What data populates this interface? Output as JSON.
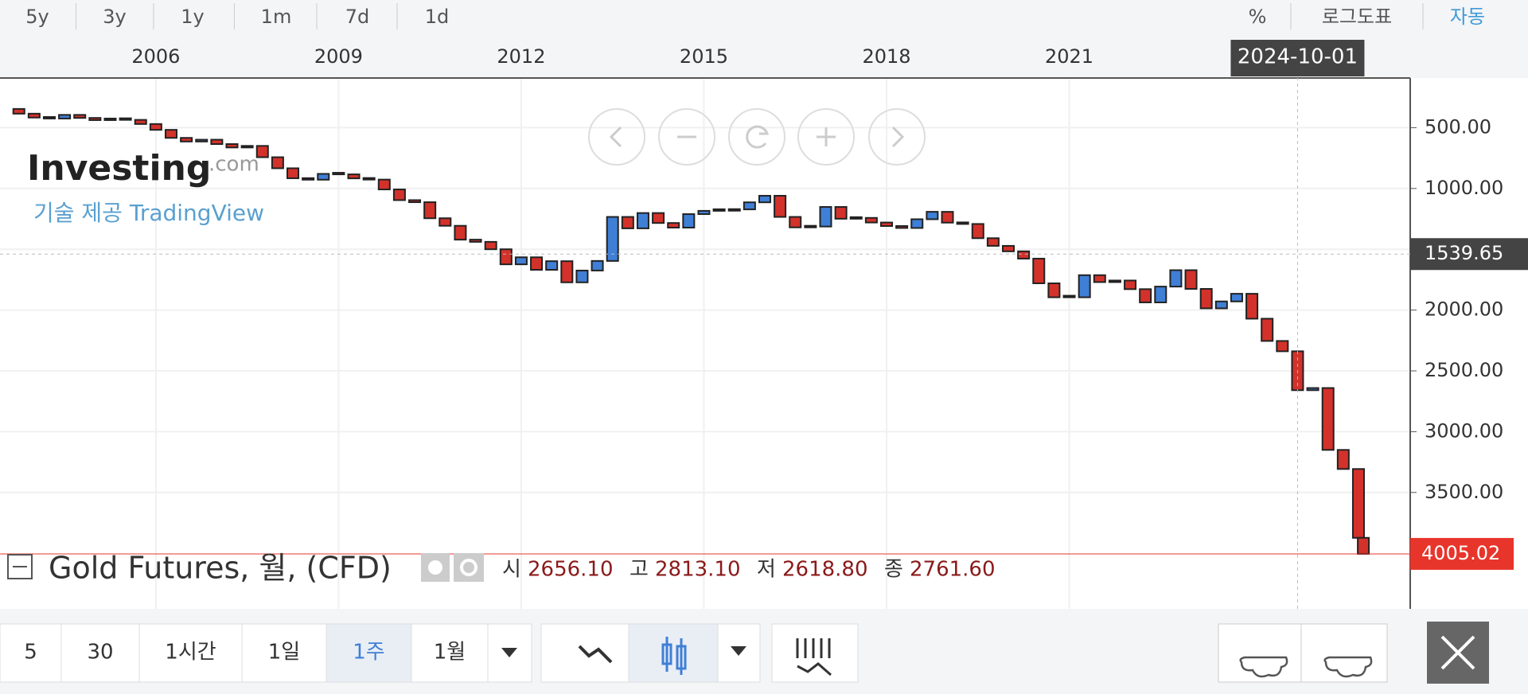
{
  "toolbar": {
    "intervals": [
      "5",
      "30",
      "1시간",
      "1일",
      "1주",
      "1월"
    ],
    "selected": 4
  },
  "range_bar": {
    "ranges": [
      "5y",
      "3y",
      "1y",
      "1m",
      "7d",
      "1d"
    ],
    "percent": "%",
    "log": "로그도표",
    "auto": "자동"
  },
  "watermark": {
    "brand": "Investing",
    "brand_suffix": ".com",
    "credit": "기술 제공 TradingView"
  },
  "chart_data": {
    "type": "candlestick",
    "title": "Gold Futures, 월, (CFD)",
    "ohlc": [
      {
        "name": "시",
        "value": "2656.10"
      },
      {
        "name": "고",
        "value": "2813.10"
      },
      {
        "name": "저",
        "value": "2618.80"
      },
      {
        "name": "종",
        "value": "2761.60"
      }
    ],
    "up_color": "#d3322b",
    "down_color": "#3f7fd6",
    "x": [
      2003.5,
      2003.75,
      2004,
      2004.25,
      2004.5,
      2004.75,
      2005,
      2005.25,
      2005.5,
      2005.75,
      2006,
      2006.25,
      2006.5,
      2006.75,
      2007,
      2007.25,
      2007.5,
      2007.75,
      2008,
      2008.25,
      2008.5,
      2008.75,
      2009,
      2009.25,
      2009.5,
      2009.75,
      2010,
      2010.25,
      2010.5,
      2010.75,
      2011,
      2011.25,
      2011.5,
      2011.75,
      2012,
      2012.25,
      2012.5,
      2012.75,
      2013,
      2013.25,
      2013.5,
      2013.75,
      2014,
      2014.25,
      2014.5,
      2014.75,
      2015,
      2015.25,
      2015.5,
      2015.75,
      2016,
      2016.25,
      2016.5,
      2016.75,
      2017,
      2017.25,
      2017.5,
      2017.75,
      2018,
      2018.25,
      2018.5,
      2018.75,
      2019,
      2019.25,
      2019.5,
      2019.75,
      2020,
      2020.25,
      2020.5,
      2020.75,
      2021,
      2021.25,
      2021.5,
      2021.75,
      2022,
      2022.25,
      2022.5,
      2022.75,
      2023,
      2023.25,
      2023.5,
      2023.75,
      2024,
      2024.25,
      2024.5,
      2024.75,
      2025,
      2025.25,
      2025.5,
      2025.75,
      2025.83
    ],
    "values": [
      346,
      385,
      417,
      425,
      395,
      420,
      438,
      428,
      436,
      470,
      518,
      584,
      614,
      599,
      635,
      663,
      650,
      743,
      834,
      916,
      928,
      880,
      884,
      917,
      927,
      1008,
      1096,
      1113,
      1245,
      1307,
      1421,
      1439,
      1500,
      1624,
      1566,
      1669,
      1598,
      1772,
      1675,
      1596,
      1234,
      1328,
      1202,
      1284,
      1322,
      1211,
      1184,
      1183,
      1172,
      1114,
      1060,
      1234,
      1320,
      1313,
      1152,
      1249,
      1242,
      1280,
      1309,
      1325,
      1253,
      1192,
      1281,
      1292,
      1409,
      1472,
      1517,
      1577,
      1780,
      1895,
      1895,
      1713,
      1770,
      1757,
      1828,
      1937,
      1807,
      1672,
      1826,
      1986,
      1929,
      1866,
      2071,
      2254,
      2339,
      2659,
      2641,
      3150,
      3307,
      3873,
      4005.02
    ],
    "xlim": [
      2003.44,
      2026.6
    ],
    "xticks": [
      2006,
      2009,
      2012,
      2015,
      2018,
      2021
    ],
    "ylim": [
      91.6,
      4457
    ],
    "yticks": [
      {
        "value": 500,
        "label": "500.00"
      },
      {
        "value": 1000,
        "label": "1000.00"
      },
      {
        "value": 1500,
        "label": "1500.00"
      },
      {
        "value": 2000,
        "label": "2000.00"
      },
      {
        "value": 2500,
        "label": "2500.00"
      },
      {
        "value": 3000,
        "label": "3000.00"
      },
      {
        "value": 3500,
        "label": "3500.00"
      }
    ],
    "grid": true,
    "last_price": {
      "value": 4005.02,
      "label": "4005.02",
      "color": "#e8352b"
    },
    "crosshair": {
      "x": 2024.75,
      "x_label": "2024-10-01",
      "y": 1539.65,
      "y_label": "1539.65"
    }
  }
}
